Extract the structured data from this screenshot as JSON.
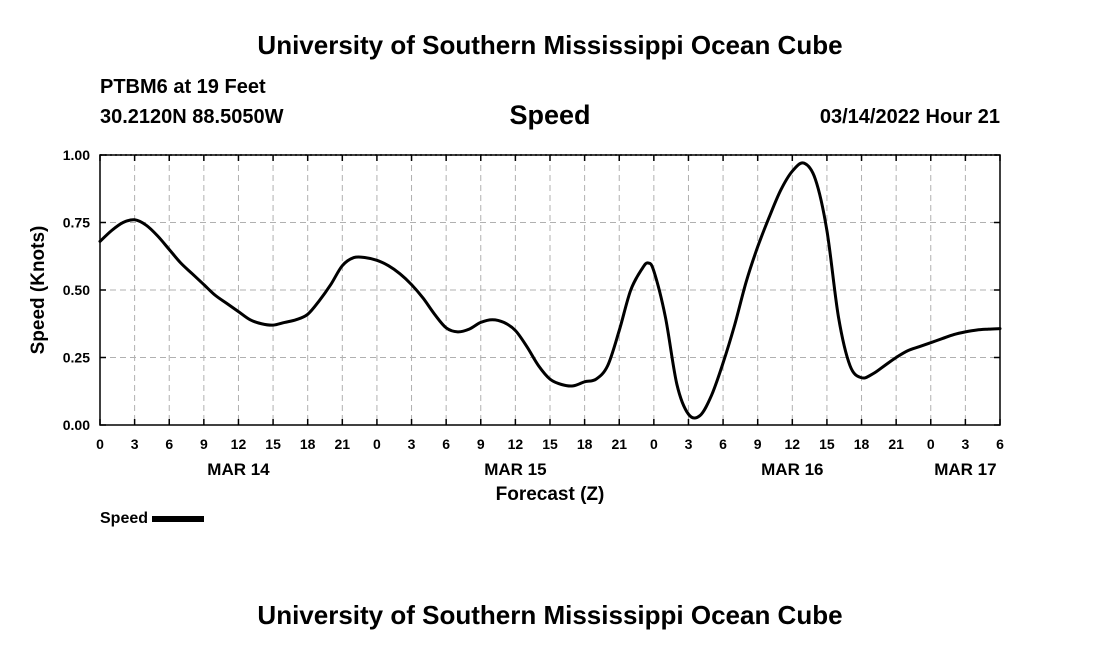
{
  "header": {
    "title": "University of Southern Mississippi Ocean Cube",
    "station": "PTBM6 at 19 Feet",
    "coordinates": "30.2120N  88.5050W",
    "chart_title": "Speed",
    "datetime": "03/14/2022 Hour 21"
  },
  "footer": {
    "title": "University of Southern Mississippi Ocean Cube"
  },
  "legend": {
    "label": "Speed",
    "color": "#000000"
  },
  "chart_data": {
    "type": "line",
    "title": "Speed",
    "xlabel": "Forecast (Z)",
    "ylabel": "Speed (Knots)",
    "xlim": [
      0,
      78
    ],
    "ylim": [
      0,
      1
    ],
    "grid": true,
    "y_ticks": [
      0,
      0.25,
      0.5,
      0.75,
      1
    ],
    "y_tick_labels": [
      "0.00",
      "0.25",
      "0.50",
      "0.75",
      "1.00"
    ],
    "x_ticks": [
      0,
      3,
      6,
      9,
      12,
      15,
      18,
      21,
      24,
      27,
      30,
      33,
      36,
      39,
      42,
      45,
      48,
      51,
      54,
      57,
      60,
      63,
      66,
      69,
      72,
      75,
      78
    ],
    "x_tick_labels": [
      "0",
      "3",
      "6",
      "9",
      "12",
      "15",
      "18",
      "21",
      "0",
      "3",
      "6",
      "9",
      "12",
      "15",
      "18",
      "21",
      "0",
      "3",
      "6",
      "9",
      "12",
      "15",
      "18",
      "21",
      "0",
      "3",
      "6"
    ],
    "day_labels": [
      {
        "label": "MAR 14",
        "x": 12
      },
      {
        "label": "MAR 15",
        "x": 36
      },
      {
        "label": "MAR 16",
        "x": 60
      },
      {
        "label": "MAR 17",
        "x": 75
      }
    ],
    "series": [
      {
        "name": "Speed",
        "color": "#000000",
        "x": [
          0,
          1,
          2,
          3,
          4,
          5,
          6,
          7,
          8,
          9,
          10,
          11,
          12,
          13,
          14,
          15,
          16,
          17,
          18,
          19,
          20,
          21,
          22,
          23,
          24,
          25,
          26,
          27,
          28,
          29,
          30,
          31,
          32,
          33,
          34,
          35,
          36,
          37,
          38,
          39,
          40,
          41,
          42,
          43,
          44,
          45,
          46,
          47,
          47.5,
          48,
          49,
          50,
          51,
          52,
          53,
          54,
          55,
          56,
          57,
          58,
          59,
          60,
          61,
          62,
          63,
          64,
          65,
          66,
          67,
          68,
          69,
          70,
          71,
          72,
          73,
          74,
          75,
          76,
          77,
          78
        ],
        "y": [
          0.68,
          0.72,
          0.75,
          0.76,
          0.74,
          0.7,
          0.65,
          0.6,
          0.56,
          0.52,
          0.48,
          0.45,
          0.42,
          0.39,
          0.375,
          0.37,
          0.38,
          0.39,
          0.41,
          0.46,
          0.52,
          0.59,
          0.62,
          0.62,
          0.61,
          0.59,
          0.56,
          0.52,
          0.47,
          0.41,
          0.36,
          0.345,
          0.355,
          0.38,
          0.39,
          0.38,
          0.35,
          0.29,
          0.22,
          0.17,
          0.15,
          0.145,
          0.16,
          0.17,
          0.22,
          0.35,
          0.5,
          0.58,
          0.6,
          0.57,
          0.4,
          0.15,
          0.04,
          0.035,
          0.11,
          0.23,
          0.37,
          0.53,
          0.66,
          0.77,
          0.87,
          0.94,
          0.97,
          0.91,
          0.72,
          0.4,
          0.22,
          0.175,
          0.19,
          0.22,
          0.25,
          0.275,
          0.29,
          0.305,
          0.32,
          0.335,
          0.345,
          0.352,
          0.355,
          0.357
        ]
      }
    ]
  }
}
